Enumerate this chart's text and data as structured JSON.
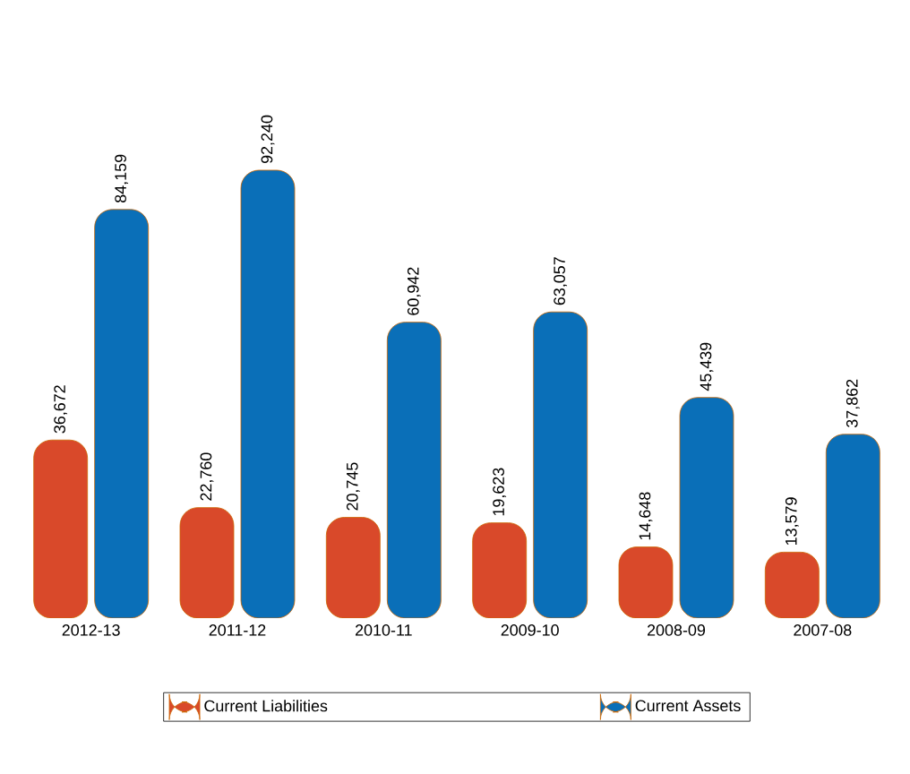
{
  "chart_data": {
    "type": "bar",
    "categories": [
      "2012-13",
      "2011-12",
      "2010-11",
      "2009-10",
      "2008-09",
      "2007-08"
    ],
    "series": [
      {
        "name": "Current Liabilities",
        "color": "#d9492a",
        "values": [
          36672,
          22760,
          20745,
          19623,
          14648,
          13579
        ],
        "value_labels": [
          "36,672",
          "22,760",
          "20,745",
          "19,623",
          "14,648",
          "13,579"
        ]
      },
      {
        "name": "Current Assets",
        "color": "#0a6fb8",
        "values": [
          84159,
          92240,
          60942,
          63057,
          45439,
          37862
        ],
        "value_labels": [
          "84,159",
          "92,240",
          "60,942",
          "63,057",
          "45,439",
          "37,862"
        ]
      }
    ],
    "legend": "bottom"
  }
}
